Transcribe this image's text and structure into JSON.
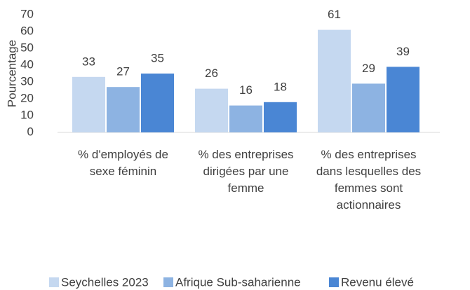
{
  "chart_data": {
    "type": "bar",
    "categories": [
      "% d'employés de sexe féminin",
      "% des entreprises dirigées par une femme",
      "% des entreprises dans lesquelles des femmes sont actionnaires"
    ],
    "series": [
      {
        "name": "Seychelles 2023",
        "color": "#c5d8f0",
        "values": [
          33,
          26,
          61
        ]
      },
      {
        "name": "Afrique Sub-saharienne",
        "color": "#8db3e2",
        "values": [
          27,
          16,
          29
        ]
      },
      {
        "name": "Revenu élevé",
        "color": "#4a86d4",
        "values": [
          35,
          18,
          39
        ]
      }
    ],
    "ylabel": "Pourcentage",
    "ylim": [
      0,
      70
    ],
    "yticks": [
      0,
      10,
      20,
      30,
      40,
      50,
      60,
      70
    ],
    "grid": false,
    "legend": "bottom"
  }
}
